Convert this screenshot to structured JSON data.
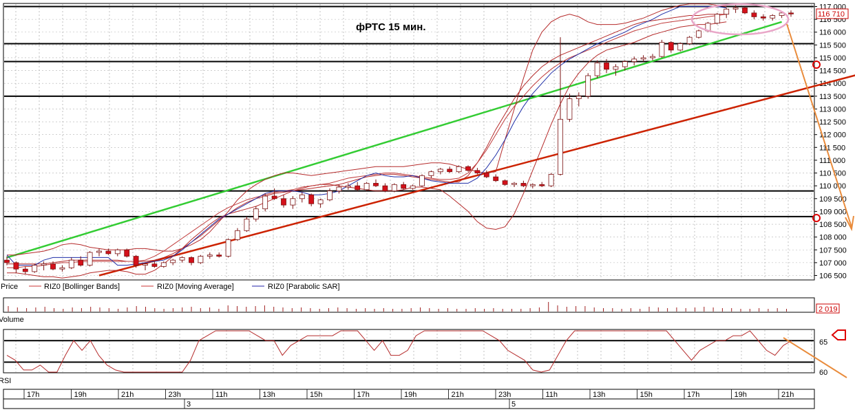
{
  "chart_data": {
    "type": "candlestick",
    "title": "фРТС   15 мин.",
    "price_panel": {
      "ylim": [
        106500,
        117000
      ],
      "yticks": [
        "117 000",
        "116 500",
        "116 000",
        "115 500",
        "115 000",
        "114 500",
        "114 000",
        "113 500",
        "113 000",
        "112 500",
        "112 000",
        "111 500",
        "111 000",
        "110 500",
        "110 000",
        "109 500",
        "109 000",
        "108 500",
        "108 000",
        "107 500",
        "107 000",
        "106 500"
      ],
      "last_price_label": "116 710",
      "horizontal_levels": [
        117000,
        115550,
        114850,
        113500,
        109800,
        108800
      ],
      "candles": [
        [
          107100,
          107250,
          106900,
          107000
        ],
        [
          107000,
          107050,
          106600,
          106750
        ],
        [
          106750,
          106850,
          106550,
          106650
        ],
        [
          106650,
          106950,
          106600,
          106900
        ],
        [
          106900,
          107050,
          106700,
          106950
        ],
        [
          106950,
          107050,
          106700,
          106750
        ],
        [
          106750,
          106900,
          106650,
          106800
        ],
        [
          106800,
          107200,
          106750,
          107100
        ],
        [
          107100,
          107250,
          106850,
          106900
        ],
        [
          106900,
          107450,
          106850,
          107400
        ],
        [
          107400,
          107550,
          107250,
          107450
        ],
        [
          107450,
          107550,
          107300,
          107350
        ],
        [
          107350,
          107550,
          107250,
          107500
        ],
        [
          107500,
          107550,
          107200,
          107250
        ],
        [
          107250,
          107300,
          106800,
          106900
        ],
        [
          106900,
          107000,
          106700,
          106950
        ],
        [
          106950,
          107050,
          106800,
          106850
        ],
        [
          106850,
          107050,
          106800,
          107000
        ],
        [
          107000,
          107150,
          106900,
          107100
        ],
        [
          107100,
          107250,
          107000,
          107200
        ],
        [
          107200,
          107250,
          106900,
          107000
        ],
        [
          107000,
          107300,
          106950,
          107250
        ],
        [
          107250,
          107400,
          107150,
          107300
        ],
        [
          107300,
          107400,
          107200,
          107250
        ],
        [
          107250,
          107950,
          107200,
          107900
        ],
        [
          107900,
          108350,
          107850,
          108250
        ],
        [
          108250,
          108800,
          108200,
          108700
        ],
        [
          108700,
          109200,
          108600,
          109100
        ],
        [
          109100,
          109700,
          109000,
          109600
        ],
        [
          109600,
          109900,
          109450,
          109500
        ],
        [
          109500,
          109650,
          109150,
          109250
        ],
        [
          109250,
          109600,
          109100,
          109500
        ],
        [
          109500,
          109750,
          109350,
          109650
        ],
        [
          109650,
          109700,
          109200,
          109300
        ],
        [
          109300,
          109500,
          109150,
          109450
        ],
        [
          109450,
          109900,
          109400,
          109800
        ],
        [
          109800,
          110050,
          109700,
          109950
        ],
        [
          109950,
          110100,
          109850,
          110000
        ],
        [
          110000,
          110150,
          109800,
          109850
        ],
        [
          109850,
          110150,
          109800,
          110100
        ],
        [
          110100,
          110250,
          109950,
          110000
        ],
        [
          110000,
          110100,
          109750,
          109800
        ],
        [
          109800,
          110100,
          109750,
          110050
        ],
        [
          110050,
          110150,
          109850,
          109900
        ],
        [
          109900,
          110050,
          109850,
          110000
        ],
        [
          110000,
          110450,
          109950,
          110400
        ],
        [
          110400,
          110600,
          110300,
          110550
        ],
        [
          110550,
          110700,
          110450,
          110650
        ],
        [
          110650,
          110750,
          110500,
          110550
        ],
        [
          110550,
          110800,
          110500,
          110750
        ],
        [
          110750,
          110800,
          110550,
          110600
        ],
        [
          110600,
          110700,
          110450,
          110500
        ],
        [
          110500,
          110600,
          110300,
          110350
        ],
        [
          110350,
          110450,
          110150,
          110200
        ],
        [
          110200,
          110250,
          110000,
          110050
        ],
        [
          110050,
          110150,
          109950,
          110100
        ],
        [
          110100,
          110200,
          109950,
          110000
        ],
        [
          110000,
          110100,
          109900,
          110050
        ],
        [
          110050,
          110150,
          109950,
          110000
        ],
        [
          110000,
          110500,
          109950,
          110450
        ],
        [
          110450,
          115800,
          110400,
          112600
        ],
        [
          112600,
          113600,
          112500,
          113400
        ],
        [
          113400,
          113650,
          113100,
          113500
        ],
        [
          113500,
          114400,
          113400,
          114300
        ],
        [
          114300,
          114900,
          114200,
          114800
        ],
        [
          114800,
          114950,
          114400,
          114550
        ],
        [
          114550,
          114750,
          114300,
          114650
        ],
        [
          114650,
          114900,
          114500,
          114850
        ],
        [
          114850,
          115050,
          114700,
          114950
        ],
        [
          114950,
          115100,
          114850,
          115000
        ],
        [
          115000,
          115150,
          114900,
          115050
        ],
        [
          115050,
          115700,
          115000,
          115600
        ],
        [
          115600,
          115650,
          115200,
          115300
        ],
        [
          115300,
          115600,
          115250,
          115550
        ],
        [
          115550,
          115850,
          115500,
          115800
        ],
        [
          115800,
          116100,
          115750,
          116050
        ],
        [
          116050,
          116400,
          116000,
          116350
        ],
        [
          116350,
          116750,
          116300,
          116700
        ],
        [
          116700,
          116950,
          116550,
          116900
        ],
        [
          116900,
          117050,
          116750,
          116950
        ],
        [
          116950,
          117000,
          116700,
          116750
        ],
        [
          116750,
          116850,
          116500,
          116600
        ],
        [
          116600,
          116700,
          116450,
          116550
        ],
        [
          116550,
          116700,
          116450,
          116650
        ],
        [
          116650,
          116800,
          116550,
          116750
        ],
        [
          116750,
          116850,
          116600,
          116710
        ]
      ],
      "bollinger_upper": [
        107300,
        107300,
        107350,
        107400,
        107450,
        107550,
        107700,
        107750,
        107700,
        107600,
        107550,
        107500,
        107500,
        107500,
        107550,
        107550,
        107500,
        107450,
        107450,
        107550,
        107700,
        107900,
        108200,
        108600,
        109000,
        109450,
        109800,
        110050,
        110250,
        110400,
        110500,
        110500,
        110450,
        110400,
        110450,
        110500,
        110550,
        110600,
        110650,
        110700,
        110750,
        110750,
        110750,
        110750,
        110800,
        110850,
        110900,
        110900,
        110850,
        110750,
        110650,
        110550,
        110500,
        110550,
        111800,
        113000,
        114200,
        115300,
        116000,
        116400,
        116600,
        116700,
        116600,
        116400,
        116300,
        116300,
        116300,
        116350,
        116450,
        116550,
        116700,
        116850,
        116950,
        117050,
        117100,
        117100,
        117100,
        117050,
        117000
      ],
      "bollinger_middle": [
        106950,
        106950,
        106950,
        106950,
        106950,
        107000,
        107050,
        107100,
        107100,
        107100,
        107100,
        107100,
        107100,
        107050,
        107050,
        107050,
        107100,
        107200,
        107350,
        107550,
        107800,
        108050,
        108350,
        108650,
        108900,
        109150,
        109350,
        109500,
        109600,
        109700,
        109750,
        109800,
        109850,
        109900,
        109950,
        110000,
        110050,
        110150,
        110250,
        110350,
        110400,
        110450,
        110450,
        110400,
        110350,
        110300,
        110250,
        110200,
        110150,
        110150,
        110400,
        110900,
        111500,
        112200,
        112800,
        113400,
        113900,
        114300,
        114650,
        114900,
        115100,
        115250,
        115400,
        115550,
        115700,
        115850,
        116000,
        116150,
        116300,
        116400,
        116450,
        116500,
        116550,
        116600,
        116650,
        116650,
        116700,
        116700,
        116700
      ],
      "bollinger_lower": [
        106600,
        106600,
        106550,
        106500,
        106450,
        106450,
        106400,
        106450,
        106500,
        106600,
        106650,
        106700,
        106700,
        106650,
        106550,
        106550,
        106700,
        106950,
        107250,
        107550,
        107900,
        108200,
        108500,
        108750,
        108900,
        109000,
        109100,
        109200,
        109350,
        109500,
        109650,
        109800,
        109900,
        110000,
        110050,
        110050,
        110000,
        109950,
        109900,
        109850,
        109800,
        109800,
        109800,
        109850,
        109950,
        109950,
        109900,
        109850,
        109600,
        109300,
        109000,
        108600,
        108350,
        108300,
        108400,
        108900,
        109700,
        110600,
        111500,
        112400,
        113200,
        113900,
        114400,
        114800,
        115100,
        115300,
        115400,
        115500,
        115600,
        115750,
        115900,
        116000,
        116100,
        116200,
        116250,
        116300,
        116300,
        116350,
        116400
      ],
      "moving_average": [
        106800,
        106800,
        106850,
        106850,
        106900,
        106950,
        107000,
        107000,
        107050,
        107050,
        107050,
        107050,
        107050,
        107050,
        107050,
        107100,
        107250,
        107450,
        107700,
        107950,
        108200,
        108450,
        108700,
        108950,
        109150,
        109300,
        109450,
        109550,
        109650,
        109750,
        109800,
        109850,
        109950,
        110000,
        110050,
        110100,
        110200,
        110300,
        110350,
        110400,
        110450,
        110500,
        110500,
        110450,
        110400,
        110350,
        110300,
        110250,
        110250,
        110300,
        110500,
        110900,
        111400,
        112000,
        112600,
        113100,
        113500,
        113900,
        114250,
        114550,
        114800,
        115000,
        115150,
        115300,
        115450,
        115600,
        115750,
        115900,
        116050,
        116150,
        116250,
        116350,
        116400,
        116450,
        116500,
        116550,
        116600,
        116650,
        116700
      ],
      "parabolic_sar": [
        107300,
        106900,
        106900,
        106900,
        107100,
        107200,
        107200,
        107200,
        107200,
        107200,
        107200,
        107200,
        106900,
        106900,
        106950,
        107000,
        107050,
        107100,
        107250,
        107500,
        107800,
        108100,
        108400,
        108700,
        108900,
        109100,
        109300,
        109500,
        109700,
        109800,
        109800,
        109800,
        109750,
        109650,
        109650,
        109700,
        109800,
        110000,
        110200,
        110400,
        110500,
        110400,
        110350,
        110350,
        110400,
        110300,
        110200,
        110150,
        110100,
        110100,
        110100,
        110300,
        110700,
        111200,
        111800,
        112500,
        113100,
        113600,
        114000,
        114400,
        114700,
        114950,
        115150,
        115350,
        115550,
        115700,
        115850,
        116000,
        116200,
        116350,
        116500,
        116700,
        116850,
        117000,
        117000,
        117000,
        117000,
        117000,
        116950
      ],
      "trendlines": [
        {
          "color": "#33cc33",
          "from": [
            0,
            107200
          ],
          "to": [
            84,
            116400
          ]
        },
        {
          "color": "#cc2200",
          "from": [
            10,
            106500
          ],
          "to": [
            96,
            114700
          ]
        }
      ]
    },
    "legend": [
      "Price",
      "RIZ0 [Bollinger Bands]",
      "RIZ0 [Moving Average]",
      "RIZ0 [Parabolic SAR]"
    ],
    "volume_panel": {
      "label": "Volume",
      "last_value_label": "2 019",
      "values": [
        8,
        6,
        5,
        6,
        7,
        5,
        4,
        6,
        5,
        7,
        6,
        5,
        4,
        6,
        8,
        7,
        5,
        4,
        5,
        6,
        7,
        5,
        6,
        4,
        9,
        8,
        7,
        8,
        9,
        7,
        6,
        5,
        6,
        5,
        4,
        5,
        6,
        5,
        4,
        5,
        4,
        5,
        4,
        4,
        5,
        6,
        5,
        4,
        5,
        4,
        4,
        5,
        4,
        5,
        4,
        4,
        4,
        5,
        6,
        14,
        9,
        7,
        8,
        8,
        6,
        5,
        5,
        4,
        5,
        4,
        7,
        6,
        5,
        6,
        5,
        6,
        7,
        6,
        5,
        5,
        4,
        4,
        5,
        4,
        5,
        4
      ]
    },
    "rsi_panel": {
      "label": "RSI",
      "ylim": [
        59,
        68
      ],
      "yticks": [
        "65",
        "60"
      ],
      "levels": [
        66,
        61.6
      ],
      "values": [
        63,
        62,
        60,
        60,
        61,
        59,
        59,
        63,
        66,
        64,
        66,
        63,
        61,
        60,
        59,
        59,
        59,
        59,
        59,
        59,
        59,
        59,
        62,
        66,
        67,
        68,
        68,
        68,
        68,
        68,
        67,
        66,
        66,
        63,
        65,
        66,
        67,
        67,
        67,
        67,
        68,
        68,
        68,
        66,
        64,
        66,
        63,
        63,
        64,
        67,
        68,
        68,
        68,
        68,
        68,
        68,
        68,
        68,
        67,
        66,
        64,
        63,
        62,
        60,
        59,
        60,
        63,
        66,
        68,
        68,
        68,
        68,
        68,
        68,
        68,
        68,
        68,
        68,
        68,
        68,
        66,
        64,
        62,
        64,
        65,
        66,
        66,
        67,
        67,
        68,
        66,
        64,
        63,
        65,
        66
      ]
    },
    "time_axis": {
      "hour_labels": [
        "17h",
        "19h",
        "21h",
        "23h",
        "11h",
        "13h",
        "15h",
        "17h",
        "19h",
        "21h",
        "23h",
        "11h",
        "13h",
        "15h",
        "17h",
        "19h",
        "21h"
      ],
      "day_labels": [
        "3",
        "5"
      ]
    },
    "annotations": {
      "ellipse_color": "#e9a6c8",
      "arrow_color": "#e98b3b",
      "marker_color": "#dd0000"
    }
  }
}
